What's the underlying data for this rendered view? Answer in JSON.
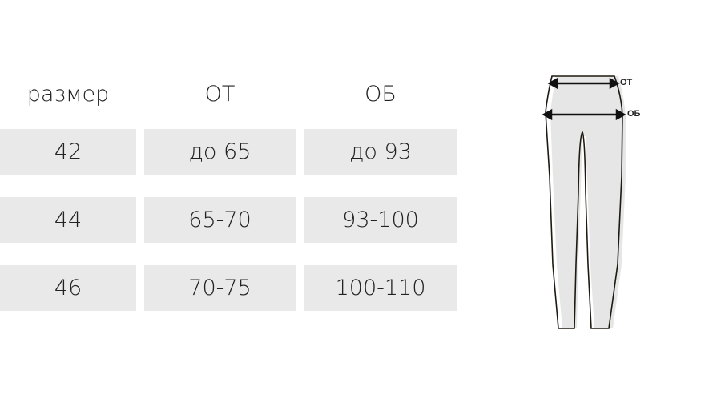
{
  "headers": [
    "размер",
    "ОТ",
    "ОБ"
  ],
  "rows": [
    [
      "42",
      "до 65",
      "до 93"
    ],
    [
      "44",
      "65-70",
      "93-100"
    ],
    [
      "46",
      "70-75",
      "100-110"
    ]
  ],
  "diagram": {
    "waist_label": "ОТ",
    "hip_label": "ОБ"
  },
  "colors": {
    "cell_bg": "#e9e9e9",
    "text": "#222222"
  }
}
